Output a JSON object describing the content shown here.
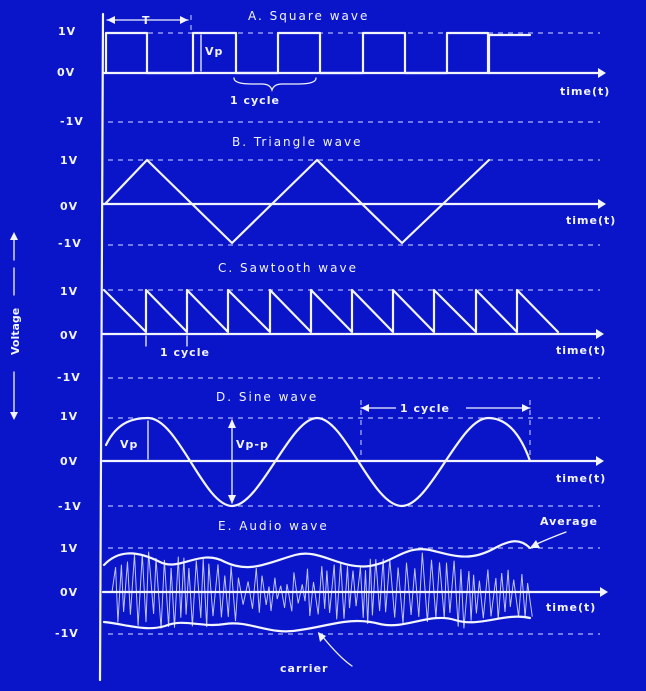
{
  "axis": {
    "voltage_label": "Voltage",
    "time_label": "time(t)"
  },
  "square": {
    "title": "A. Square wave",
    "label_T": "T",
    "label_vp": "Vp",
    "label_cycle": "1 cycle",
    "y_labels": [
      "1V",
      "0V",
      "-1V"
    ]
  },
  "triangle": {
    "title": "B. Triangle wave",
    "y_labels": [
      "1V",
      "0V",
      "-1V"
    ]
  },
  "sawtooth": {
    "title": "C. Sawtooth wave",
    "label_cycle": "1 cycle",
    "y_labels": [
      "1V",
      "0V",
      "-1V"
    ]
  },
  "sine": {
    "title": "D. Sine wave",
    "label_vp": "Vp",
    "label_vpp": "Vp-p",
    "label_cycle": "1 cycle",
    "y_labels": [
      "1V",
      "0V",
      "-1V"
    ]
  },
  "audio": {
    "title": "E. Audio wave",
    "label_average": "Average",
    "label_carrier": "carrier",
    "y_labels": [
      "1V",
      "0V",
      "-1V"
    ]
  },
  "colors": {
    "background": "#0a14c8",
    "ink": "#f2f4ff"
  }
}
